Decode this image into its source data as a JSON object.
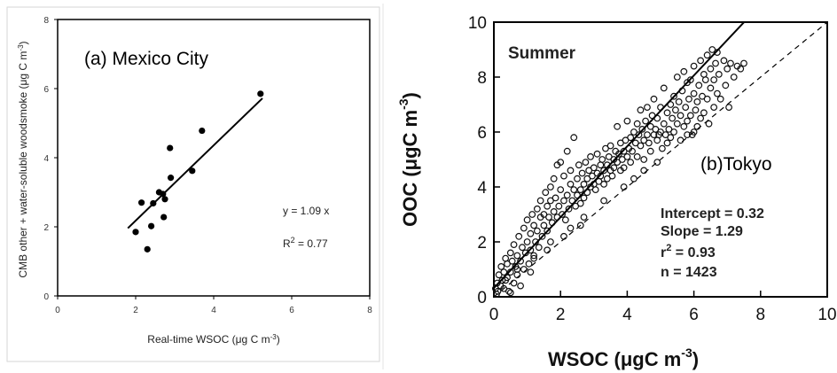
{
  "chart_data": [
    {
      "type": "scatter",
      "title": "(a) Mexico City",
      "xlabel_main": "Real-time WSOC (",
      "xlabel_unit": "μg C m",
      "xlabel_sup": "-3",
      "xlabel_close": ")",
      "ylabel_main": "CMB other + water-soluble woodsmoke (",
      "ylabel_unit": "μg C m",
      "ylabel_sup": "-3",
      "ylabel_close": ")",
      "xlim": [
        0,
        8
      ],
      "ylim": [
        0,
        8
      ],
      "xticks": [
        "0",
        "2",
        "4",
        "6",
        "8"
      ],
      "yticks": [
        "0",
        "2",
        "4",
        "6",
        "8"
      ],
      "equation": "y = 1.09 x",
      "r2_base": "R",
      "r2_sup": "2",
      "r2_value": " = 0.77",
      "points": [
        {
          "x": 2.0,
          "y": 1.85
        },
        {
          "x": 2.15,
          "y": 2.7
        },
        {
          "x": 2.3,
          "y": 1.35
        },
        {
          "x": 2.4,
          "y": 2.02
        },
        {
          "x": 2.45,
          "y": 2.68
        },
        {
          "x": 2.6,
          "y": 3.0
        },
        {
          "x": 2.7,
          "y": 2.95
        },
        {
          "x": 2.75,
          "y": 2.8
        },
        {
          "x": 2.72,
          "y": 2.28
        },
        {
          "x": 2.88,
          "y": 4.28
        },
        {
          "x": 2.9,
          "y": 3.42
        },
        {
          "x": 3.45,
          "y": 3.62
        },
        {
          "x": 3.7,
          "y": 4.78
        },
        {
          "x": 5.2,
          "y": 5.85
        }
      ],
      "fit_line": {
        "x": [
          1.8,
          5.25
        ],
        "y": [
          1.96,
          5.72
        ]
      }
    },
    {
      "type": "scatter",
      "title": "Summer",
      "site": "(b)Tokyo",
      "xlabel_main": "WSOC (μgC m",
      "xlabel_sup": "-3",
      "xlabel_close": ")",
      "ylabel_main": "OOC (μgC m",
      "ylabel_sup": "-3",
      "ylabel_close": ")",
      "xlim": [
        0,
        10
      ],
      "ylim": [
        0,
        10
      ],
      "xticks": [
        "0",
        "2",
        "4",
        "6",
        "8",
        "10"
      ],
      "yticks": [
        "0",
        "2",
        "4",
        "6",
        "8",
        "10"
      ],
      "stats": {
        "intercept": "Intercept = 0.32",
        "slope": "Slope = 1.29",
        "r2_base": "r",
        "r2_sup": "2",
        "r2_value": " = 0.93",
        "n": "n = 1423"
      },
      "fit_line": {
        "intercept": 0.32,
        "slope": 1.29,
        "x": [
          0,
          7.5
        ]
      },
      "reference_line": {
        "slope": 1,
        "x": [
          0,
          10
        ]
      },
      "points": [
        [
          0.05,
          0.3
        ],
        [
          0.1,
          0.5
        ],
        [
          0.12,
          0.2
        ],
        [
          0.15,
          0.8
        ],
        [
          0.2,
          0.4
        ],
        [
          0.22,
          1.1
        ],
        [
          0.25,
          0.6
        ],
        [
          0.3,
          0.3
        ],
        [
          0.3,
          0.9
        ],
        [
          0.35,
          1.4
        ],
        [
          0.4,
          0.7
        ],
        [
          0.4,
          1.2
        ],
        [
          0.45,
          0.2
        ],
        [
          0.5,
          1.6
        ],
        [
          0.5,
          0.9
        ],
        [
          0.55,
          1.3
        ],
        [
          0.6,
          0.5
        ],
        [
          0.6,
          1.9
        ],
        [
          0.65,
          1.1
        ],
        [
          0.7,
          1.5
        ],
        [
          0.7,
          0.8
        ],
        [
          0.75,
          2.2
        ],
        [
          0.8,
          1.3
        ],
        [
          0.8,
          0.4
        ],
        [
          0.85,
          1.8
        ],
        [
          0.9,
          2.5
        ],
        [
          0.9,
          1.0
        ],
        [
          0.95,
          1.6
        ],
        [
          1.0,
          2.0
        ],
        [
          1.0,
          2.8
        ],
        [
          1.05,
          1.2
        ],
        [
          1.1,
          2.3
        ],
        [
          1.1,
          1.7
        ],
        [
          1.15,
          3.0
        ],
        [
          1.2,
          2.6
        ],
        [
          1.2,
          1.4
        ],
        [
          1.25,
          2.0
        ],
        [
          1.3,
          3.2
        ],
        [
          1.3,
          2.4
        ],
        [
          1.35,
          1.8
        ],
        [
          1.4,
          2.9
        ],
        [
          1.4,
          3.5
        ],
        [
          1.45,
          2.2
        ],
        [
          1.5,
          3.0
        ],
        [
          1.5,
          2.6
        ],
        [
          1.55,
          3.8
        ],
        [
          1.6,
          2.4
        ],
        [
          1.6,
          3.3
        ],
        [
          1.65,
          2.9
        ],
        [
          1.7,
          4.0
        ],
        [
          1.7,
          3.5
        ],
        [
          1.75,
          2.7
        ],
        [
          1.8,
          3.1
        ],
        [
          1.8,
          4.3
        ],
        [
          1.85,
          3.6
        ],
        [
          1.9,
          2.9
        ],
        [
          1.9,
          4.8
        ],
        [
          1.95,
          3.3
        ],
        [
          2.0,
          3.9
        ],
        [
          2.0,
          4.9
        ],
        [
          2.05,
          3.0
        ],
        [
          2.1,
          3.5
        ],
        [
          2.1,
          4.4
        ],
        [
          2.15,
          2.8
        ],
        [
          2.2,
          3.7
        ],
        [
          2.2,
          5.3
        ],
        [
          2.25,
          3.2
        ],
        [
          2.3,
          4.1
        ],
        [
          2.3,
          4.6
        ],
        [
          2.35,
          3.5
        ],
        [
          2.4,
          3.9
        ],
        [
          2.4,
          5.8
        ],
        [
          2.45,
          3.3
        ],
        [
          2.5,
          4.3
        ],
        [
          2.5,
          3.7
        ],
        [
          2.55,
          4.8
        ],
        [
          2.6,
          3.9
        ],
        [
          2.6,
          3.4
        ],
        [
          2.65,
          4.5
        ],
        [
          2.7,
          4.1
        ],
        [
          2.7,
          3.6
        ],
        [
          2.75,
          4.9
        ],
        [
          2.8,
          4.3
        ],
        [
          2.8,
          3.8
        ],
        [
          2.85,
          4.6
        ],
        [
          2.9,
          4.0
        ],
        [
          2.9,
          5.1
        ],
        [
          2.95,
          4.4
        ],
        [
          3.0,
          4.7
        ],
        [
          3.0,
          4.1
        ],
        [
          3.05,
          3.9
        ],
        [
          3.1,
          4.5
        ],
        [
          3.1,
          5.2
        ],
        [
          3.15,
          4.2
        ],
        [
          3.2,
          4.8
        ],
        [
          3.2,
          4.4
        ],
        [
          3.25,
          5.0
        ],
        [
          3.3,
          4.6
        ],
        [
          3.3,
          4.1
        ],
        [
          3.35,
          5.4
        ],
        [
          3.4,
          4.8
        ],
        [
          3.4,
          4.3
        ],
        [
          3.45,
          5.1
        ],
        [
          3.5,
          4.6
        ],
        [
          3.5,
          5.5
        ],
        [
          3.55,
          4.4
        ],
        [
          3.6,
          5.0
        ],
        [
          3.6,
          4.7
        ],
        [
          3.65,
          5.3
        ],
        [
          3.7,
          4.9
        ],
        [
          3.7,
          6.2
        ],
        [
          3.75,
          5.2
        ],
        [
          3.8,
          4.6
        ],
        [
          3.8,
          5.6
        ],
        [
          3.85,
          5.0
        ],
        [
          3.9,
          5.3
        ],
        [
          3.9,
          4.7
        ],
        [
          3.95,
          5.7
        ],
        [
          4.0,
          5.1
        ],
        [
          4.0,
          6.4
        ],
        [
          4.05,
          5.4
        ],
        [
          4.1,
          4.9
        ],
        [
          4.1,
          5.8
        ],
        [
          4.15,
          5.3
        ],
        [
          4.2,
          6.0
        ],
        [
          4.2,
          4.3
        ],
        [
          4.25,
          5.6
        ],
        [
          4.3,
          6.3
        ],
        [
          4.3,
          5.1
        ],
        [
          4.35,
          5.9
        ],
        [
          4.4,
          5.5
        ],
        [
          4.4,
          6.8
        ],
        [
          4.45,
          6.1
        ],
        [
          4.5,
          5.7
        ],
        [
          4.5,
          5.0
        ],
        [
          4.55,
          6.4
        ],
        [
          4.6,
          5.9
        ],
        [
          4.6,
          6.9
        ],
        [
          4.65,
          5.6
        ],
        [
          4.7,
          6.2
        ],
        [
          4.7,
          5.3
        ],
        [
          4.75,
          6.6
        ],
        [
          4.8,
          5.9
        ],
        [
          4.8,
          7.2
        ],
        [
          4.85,
          6.1
        ],
        [
          4.9,
          5.7
        ],
        [
          4.9,
          6.5
        ],
        [
          4.95,
          5.9
        ],
        [
          5.0,
          6.0
        ],
        [
          5.0,
          6.9
        ],
        [
          5.05,
          5.4
        ],
        [
          5.1,
          6.3
        ],
        [
          5.1,
          7.6
        ],
        [
          5.15,
          5.9
        ],
        [
          5.2,
          6.7
        ],
        [
          5.2,
          5.6
        ],
        [
          5.25,
          6.1
        ],
        [
          5.3,
          7.0
        ],
        [
          5.3,
          5.8
        ],
        [
          5.35,
          6.5
        ],
        [
          5.4,
          7.3
        ],
        [
          5.4,
          6.0
        ],
        [
          5.45,
          6.8
        ],
        [
          5.5,
          8.0
        ],
        [
          5.5,
          6.3
        ],
        [
          5.55,
          7.1
        ],
        [
          5.6,
          5.7
        ],
        [
          5.6,
          6.6
        ],
        [
          5.65,
          7.5
        ],
        [
          5.7,
          6.2
        ],
        [
          5.7,
          8.2
        ],
        [
          5.75,
          6.9
        ],
        [
          5.8,
          7.8
        ],
        [
          5.8,
          6.4
        ],
        [
          5.85,
          7.2
        ],
        [
          5.9,
          6.6
        ],
        [
          5.9,
          7.9
        ],
        [
          5.95,
          5.9
        ],
        [
          6.0,
          7.4
        ],
        [
          6.0,
          8.4
        ],
        [
          6.05,
          6.8
        ],
        [
          6.1,
          7.1
        ],
        [
          6.1,
          6.2
        ],
        [
          6.15,
          7.7
        ],
        [
          6.2,
          8.6
        ],
        [
          6.2,
          6.5
        ],
        [
          6.25,
          7.3
        ],
        [
          6.3,
          8.1
        ],
        [
          6.3,
          6.7
        ],
        [
          6.35,
          7.9
        ],
        [
          6.4,
          8.8
        ],
        [
          6.4,
          7.2
        ],
        [
          6.45,
          6.3
        ],
        [
          6.5,
          8.3
        ],
        [
          6.5,
          7.6
        ],
        [
          6.55,
          9.0
        ],
        [
          6.6,
          7.9
        ],
        [
          6.6,
          6.9
        ],
        [
          6.65,
          8.5
        ],
        [
          6.7,
          7.4
        ],
        [
          6.7,
          8.9
        ],
        [
          6.75,
          8.1
        ],
        [
          6.8,
          7.2
        ],
        [
          6.9,
          8.6
        ],
        [
          6.95,
          7.7
        ],
        [
          7.0,
          8.3
        ],
        [
          7.05,
          6.9
        ],
        [
          7.1,
          8.5
        ],
        [
          7.2,
          8.0
        ],
        [
          7.3,
          8.4
        ],
        [
          7.4,
          8.3
        ],
        [
          7.5,
          8.5
        ],
        [
          6.0,
          6.0
        ],
        [
          5.8,
          5.9
        ],
        [
          4.9,
          4.9
        ],
        [
          4.5,
          4.6
        ],
        [
          3.9,
          4.0
        ],
        [
          3.3,
          3.5
        ],
        [
          2.7,
          2.9
        ],
        [
          2.3,
          2.5
        ],
        [
          1.7,
          2.0
        ],
        [
          1.2,
          1.5
        ],
        [
          0.7,
          1.0
        ],
        [
          0.35,
          0.6
        ],
        [
          0.08,
          0.1
        ],
        [
          0.5,
          0.15
        ],
        [
          1.1,
          0.9
        ],
        [
          1.6,
          1.7
        ],
        [
          2.1,
          2.2
        ],
        [
          2.6,
          2.6
        ]
      ]
    }
  ]
}
